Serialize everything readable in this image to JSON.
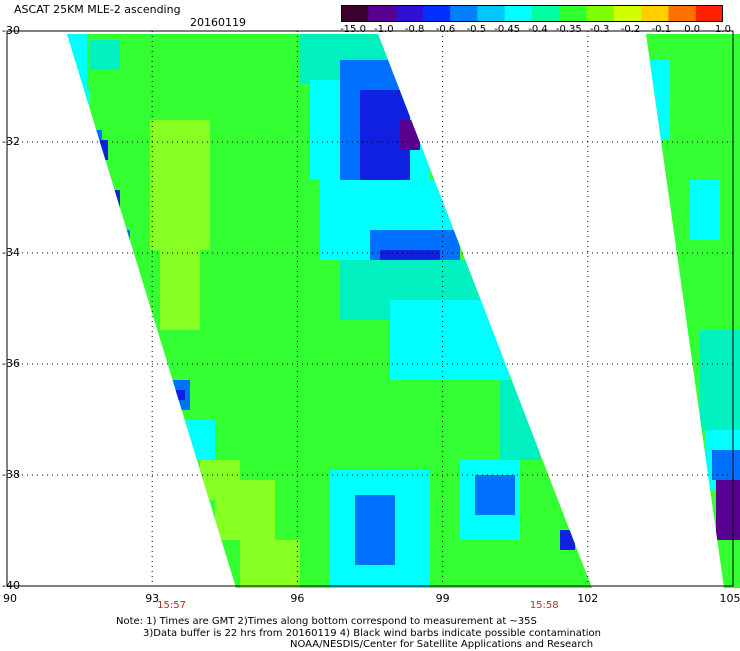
{
  "header": {
    "title": "ASCAT 25KM MLE-2 ascending",
    "date": "20160119"
  },
  "colorbar": {
    "labels": [
      "-15.0",
      "-1.0",
      "-0.8",
      "-0.6",
      "-0.5",
      "-0.45",
      "-0.4",
      "-0.35",
      "-0.3",
      "-0.2",
      "-0.1",
      "0.0",
      "1.0"
    ],
    "colors": [
      "#3a0030",
      "#5a0090",
      "#3010d0",
      "#0030ff",
      "#0080ff",
      "#00c8ff",
      "#00ffff",
      "#00ffa0",
      "#30ff30",
      "#80ff00",
      "#d0ff00",
      "#ffd000",
      "#ff7000",
      "#ff2000"
    ]
  },
  "axes": {
    "lat_labels": [
      "-30",
      "-32",
      "-34",
      "-36",
      "-38",
      "-40"
    ],
    "lat_values": [
      -30,
      -32,
      -34,
      -36,
      -38,
      -40
    ],
    "lon_labels": [
      "90",
      "93",
      "96",
      "99",
      "102",
      "105"
    ],
    "lon_values": [
      90,
      93,
      96,
      99,
      102,
      105
    ],
    "lon_range": [
      90,
      105
    ],
    "lat_range": [
      -30,
      -40
    ]
  },
  "times": [
    {
      "label": "15:57",
      "lon": 93.4
    },
    {
      "label": "15:58",
      "lon": 101.1
    }
  ],
  "notes": {
    "line1": "Note: 1) Times are GMT 2)Times along bottom correspond to measurement at ~35S",
    "line2": "3)Data buffer is 22 hrs from 20160119 4) Black wind barbs indicate possible contamination",
    "line3": "NOAA/NESDIS/Center for Satellite Applications and Research"
  },
  "map_colors": {
    "green": "#33ff33",
    "lightgreen": "#88ff22",
    "cyan": "#00ffff",
    "aqua": "#00f0c0",
    "blue": "#0070ff",
    "deepblue": "#1020e0",
    "purple": "#5a0090"
  }
}
